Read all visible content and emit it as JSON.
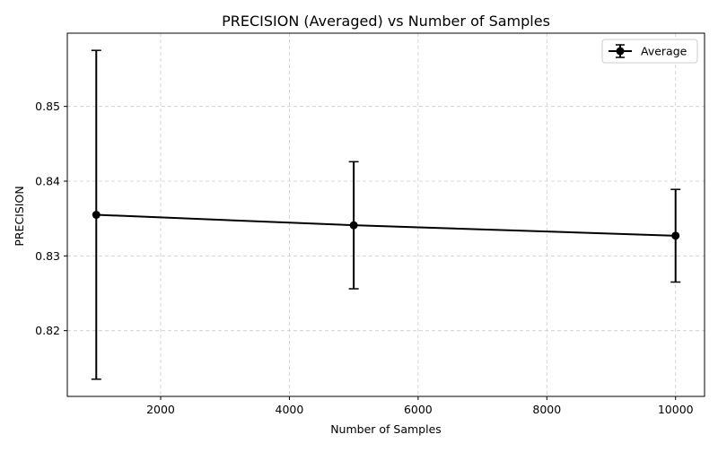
{
  "chart_data": {
    "type": "line",
    "title": "PRECISION (Averaged) vs Number of Samples",
    "xlabel": "Number of Samples",
    "ylabel": "PRECISION",
    "xlim": [
      550,
      10450
    ],
    "ylim": [
      0.8112,
      0.8598
    ],
    "xticks": [
      2000,
      4000,
      6000,
      8000,
      10000
    ],
    "yticks": [
      0.82,
      0.83,
      0.84,
      0.85
    ],
    "xtick_labels": [
      "2000",
      "4000",
      "6000",
      "8000",
      "10000"
    ],
    "ytick_labels": [
      "0.82",
      "0.83",
      "0.84",
      "0.85"
    ],
    "grid": true,
    "legend_position": "upper right",
    "series": [
      {
        "name": "Average",
        "color": "#000000",
        "x": [
          1000,
          5000,
          10000
        ],
        "y": [
          0.8355,
          0.8341,
          0.8327
        ],
        "yerr": [
          0.022,
          0.0085,
          0.0062
        ]
      }
    ]
  }
}
